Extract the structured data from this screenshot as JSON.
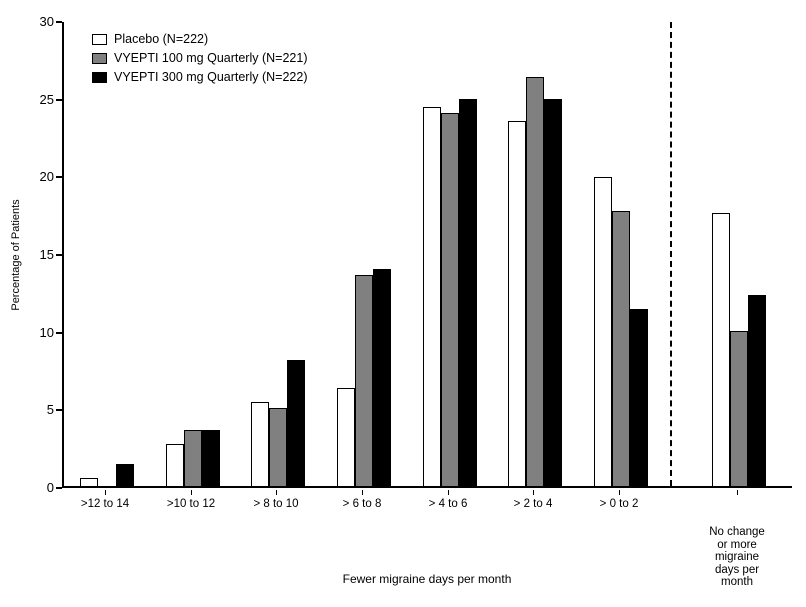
{
  "chart_data": {
    "type": "bar",
    "title": "",
    "xlabel": "Fewer migraine days per month",
    "ylabel": "Percentage of Patients",
    "ylim": [
      0,
      30
    ],
    "yticks": [
      0,
      5,
      10,
      15,
      20,
      25,
      30
    ],
    "grid": false,
    "legend_position": "top-left",
    "separator_after_index": 6,
    "separator_style": "vertical-dashed-line",
    "categories": [
      ">12 to 14",
      ">10 to 12",
      "> 8 to 10",
      "> 6 to 8",
      "> 4 to 6",
      "> 2 to 4",
      "> 0 to 2",
      "No change\nor more\nmigraine\ndays per\nmonth"
    ],
    "series": [
      {
        "name": "Placebo (N=222)",
        "color": "#ffffff",
        "values": [
          0.5,
          2.7,
          5.4,
          6.3,
          24.4,
          23.5,
          19.9,
          17.6
        ]
      },
      {
        "name": "VYEPTI 100 mg Quarterly (N=221)",
        "color": "#808080",
        "values": [
          0,
          3.6,
          5.0,
          13.6,
          24.0,
          26.3,
          17.7,
          10.0
        ]
      },
      {
        "name": "VYEPTI 300 mg Quarterly (N=222)",
        "color": "#000000",
        "values": [
          1.4,
          3.6,
          8.1,
          14.0,
          24.9,
          24.9,
          11.4,
          12.3
        ]
      }
    ]
  }
}
